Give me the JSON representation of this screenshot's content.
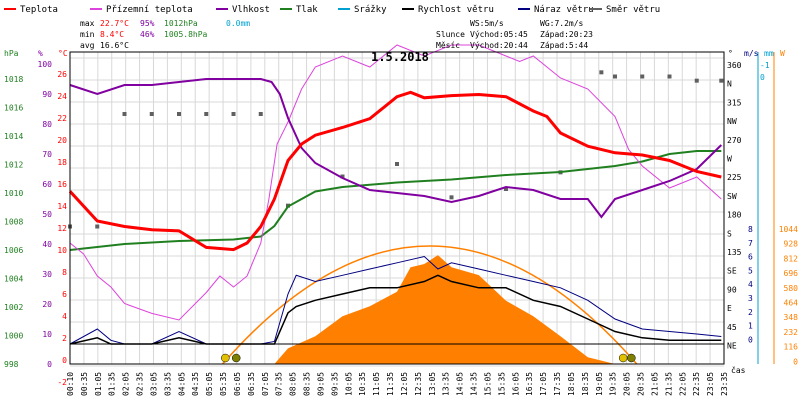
{
  "legend": [
    {
      "label": "Teplota",
      "color": "#ff0000"
    },
    {
      "label": "Přízemní teplota",
      "color": "#dd44dd"
    },
    {
      "label": "Vlhkost",
      "color": "#8000a0"
    },
    {
      "label": "Tlak",
      "color": "#208020"
    },
    {
      "label": "Srážky",
      "color": "#00a0d0"
    },
    {
      "label": "Rychlost větru",
      "color": "#000000"
    },
    {
      "label": "Náraz větru",
      "color": "#000080"
    },
    {
      "label": "Směr větru",
      "color": "#606060"
    }
  ],
  "stats": {
    "max_label": "max",
    "max_temp": "22.7°C",
    "max_hum": "95%",
    "max_press": "1012hPa",
    "max_rain": "0.0mm",
    "min_label": "min",
    "min_temp": "8.4°C",
    "min_hum": "46%",
    "min_press": "1005.8hPa",
    "avg_label": "avg",
    "avg_temp": "16.6°C"
  },
  "astro": {
    "ws": "WS:5m/s",
    "wg": "WG:7.2m/s",
    "sun_label": "Slunce",
    "sun_rise": "Východ:05:45",
    "sun_set": "Západ:20:23",
    "moon_label": "Měsíc",
    "moon_rise": "Východ:20:44",
    "moon_set": "Západ:5:44"
  },
  "title": "1.5.2018",
  "x_axis_label": "čas",
  "axes": {
    "hpa_unit": "hPa",
    "pct_unit": "%",
    "c_unit": "°C",
    "deg_unit": "°",
    "ms_unit": "m/s",
    "mm_unit": "mm",
    "w_unit": "W",
    "hpa_ticks": [
      "1018",
      "1016",
      "1014",
      "1012",
      "1010",
      "1008",
      "1006",
      "1004",
      "1002",
      "1000",
      "998"
    ],
    "pct_ticks": [
      "100",
      "90",
      "80",
      "70",
      "60",
      "50",
      "40",
      "30",
      "20",
      "10",
      "0"
    ],
    "c_ticks": [
      "26",
      "24",
      "22",
      "20",
      "18",
      "16",
      "14",
      "12",
      "10",
      "8",
      "6",
      "4",
      "2",
      "0",
      "-2"
    ],
    "dir_ticks": [
      "360",
      "N",
      "315",
      "NW",
      "270",
      "W",
      "225",
      "SW",
      "180",
      "S",
      "135",
      "SE",
      "90",
      "E",
      "45",
      "NE"
    ],
    "ms_ticks": [
      "8",
      "7",
      "6",
      "5",
      "4",
      "3",
      "2",
      "1",
      "0"
    ],
    "mm_ticks": [
      "-1",
      "0"
    ],
    "w_ticks": [
      "1044",
      "928",
      "812",
      "696",
      "580",
      "464",
      "348",
      "232",
      "116",
      "0"
    ],
    "time_ticks": [
      "00:10",
      "00:35",
      "01:05",
      "01:35",
      "02:05",
      "02:35",
      "03:05",
      "03:35",
      "04:05",
      "04:35",
      "05:05",
      "05:35",
      "06:05",
      "06:35",
      "07:05",
      "07:35",
      "08:05",
      "08:35",
      "09:05",
      "09:35",
      "10:05",
      "10:35",
      "11:05",
      "11:35",
      "12:05",
      "12:35",
      "13:05",
      "13:35",
      "14:05",
      "14:35",
      "15:05",
      "15:35",
      "16:05",
      "16:35",
      "17:05",
      "17:35",
      "18:05",
      "18:35",
      "19:05",
      "19:35",
      "20:05",
      "20:35",
      "21:05",
      "21:35",
      "22:05",
      "22:35",
      "23:05",
      "23:35"
    ]
  },
  "colors": {
    "temp": "#ff0000",
    "ground": "#dd44dd",
    "hum": "#8000a0",
    "press": "#208020",
    "rain": "#00a0d0",
    "wind": "#000000",
    "gust": "#000080",
    "dir": "#606060",
    "solar_fill": "#ff8000",
    "solar_theory": "#ff8000",
    "grid": "#d8d8d8"
  },
  "chart_data": {
    "type": "line",
    "title": "1.5.2018",
    "x_unit": "hours",
    "series": [
      {
        "name": "Teplota",
        "unit": "°C",
        "x": [
          0,
          1,
          2,
          3,
          4,
          5,
          5.5,
          6,
          6.5,
          7,
          7.5,
          8,
          8.5,
          9,
          10,
          11,
          12,
          12.5,
          13,
          14,
          15,
          16,
          17,
          17.5,
          18,
          19,
          20,
          21,
          22,
          23,
          23.9
        ],
        "values": [
          13.7,
          11,
          10.5,
          10.2,
          10.1,
          8.6,
          8.5,
          8.4,
          9,
          10.5,
          13,
          16.5,
          18,
          18.8,
          19.5,
          20.3,
          22.3,
          22.7,
          22.2,
          22.4,
          22.5,
          22.3,
          21,
          20.5,
          19,
          17.8,
          17.2,
          17,
          16.5,
          15.5,
          15
        ]
      },
      {
        "name": "Přízemní teplota",
        "unit": "°C",
        "x": [
          0,
          0.5,
          1,
          1.5,
          2,
          3,
          4,
          5,
          5.5,
          6,
          6.5,
          7,
          7.3,
          7.6,
          8,
          8.5,
          9,
          10,
          11,
          12,
          13,
          14,
          15,
          16,
          16.5,
          17,
          18,
          19,
          20,
          20.5,
          21,
          22,
          23,
          23.9
        ],
        "values": [
          9,
          8,
          6,
          5,
          3.5,
          2.6,
          2,
          4.5,
          6,
          5,
          6,
          9,
          13,
          18,
          20,
          23,
          25,
          26,
          25,
          27,
          26,
          27,
          27,
          26,
          25.5,
          26,
          24,
          23,
          20.5,
          17.5,
          16,
          14,
          15,
          13
        ]
      },
      {
        "name": "Vlhkost",
        "unit": "%",
        "x": [
          0,
          1,
          2,
          3,
          4,
          5,
          6,
          7,
          7.4,
          7.7,
          8,
          8.5,
          9,
          10,
          11,
          12,
          13,
          14,
          15,
          16,
          17,
          18,
          19,
          19.5,
          20,
          21,
          22,
          23,
          23.9
        ],
        "values": [
          93,
          90,
          93,
          93,
          94,
          95,
          95,
          95,
          94,
          90,
          82,
          72,
          67,
          62,
          58,
          57,
          56,
          54,
          56,
          59,
          58,
          55,
          55,
          49,
          55,
          58,
          61,
          65,
          73
        ]
      },
      {
        "name": "Tlak",
        "unit": "hPa",
        "x": [
          0,
          2,
          4,
          6,
          7,
          7.5,
          8,
          9,
          10,
          12,
          14,
          16,
          18,
          19,
          20,
          21,
          22,
          23,
          23.9
        ],
        "values": [
          1005.6,
          1006,
          1006.2,
          1006.3,
          1006.5,
          1007.2,
          1008.5,
          1009.5,
          1009.8,
          1010.1,
          1010.3,
          1010.6,
          1010.8,
          1011,
          1011.2,
          1011.5,
          1012,
          1012.2,
          1012.2
        ]
      },
      {
        "name": "Srážky",
        "unit": "mm",
        "values": [
          0
        ]
      },
      {
        "name": "Rychlost větru",
        "unit": "m/s",
        "x": [
          0,
          1,
          1.5,
          2,
          3,
          4,
          5,
          6,
          7,
          7.5,
          8,
          8.3,
          9,
          10,
          11,
          12,
          13,
          13.5,
          14,
          15,
          16,
          17,
          18,
          19,
          20,
          21,
          22,
          23,
          23.9
        ],
        "values": [
          0,
          0.5,
          0,
          0,
          0,
          0.5,
          0,
          0,
          0,
          0,
          2.5,
          3,
          3.5,
          4,
          4.5,
          4.5,
          5,
          5.5,
          5,
          4.5,
          4.5,
          3.5,
          3,
          2,
          1,
          0.5,
          0.3,
          0.3,
          0.3
        ]
      },
      {
        "name": "Náraz větru",
        "unit": "m/s",
        "x": [
          0,
          1,
          1.5,
          2,
          3,
          4,
          5,
          6,
          7,
          7.5,
          8,
          8.3,
          9,
          10,
          11,
          12,
          13,
          13.5,
          14,
          15,
          16,
          17,
          18,
          19,
          20,
          21,
          22,
          23,
          23.9
        ],
        "values": [
          0,
          1.2,
          0.3,
          0,
          0,
          1,
          0,
          0,
          0,
          0.2,
          4,
          5.5,
          5,
          5.5,
          6,
          6.5,
          7,
          6,
          6.5,
          6,
          5.5,
          5,
          4.5,
          3.5,
          2,
          1.2,
          1,
          0.8,
          0.6
        ]
      },
      {
        "name": "Směr větru",
        "unit": "°",
        "x": [
          0,
          1,
          2,
          3,
          4,
          5,
          6,
          7,
          8,
          10,
          12,
          14,
          16,
          18,
          19.5,
          20,
          21,
          22,
          23,
          23.9
        ],
        "values": [
          165,
          165,
          300,
          300,
          300,
          300,
          300,
          300,
          190,
          225,
          240,
          200,
          210,
          230,
          350,
          345,
          345,
          345,
          340,
          340
        ]
      },
      {
        "name": "Solar",
        "unit": "W",
        "x": [
          7.5,
          8,
          9,
          10,
          11,
          12,
          12.5,
          13,
          13.5,
          14,
          15,
          16,
          17,
          18,
          19,
          20
        ],
        "values": [
          0,
          140,
          250,
          430,
          520,
          650,
          870,
          900,
          980,
          870,
          800,
          570,
          430,
          250,
          60,
          0
        ]
      }
    ]
  }
}
